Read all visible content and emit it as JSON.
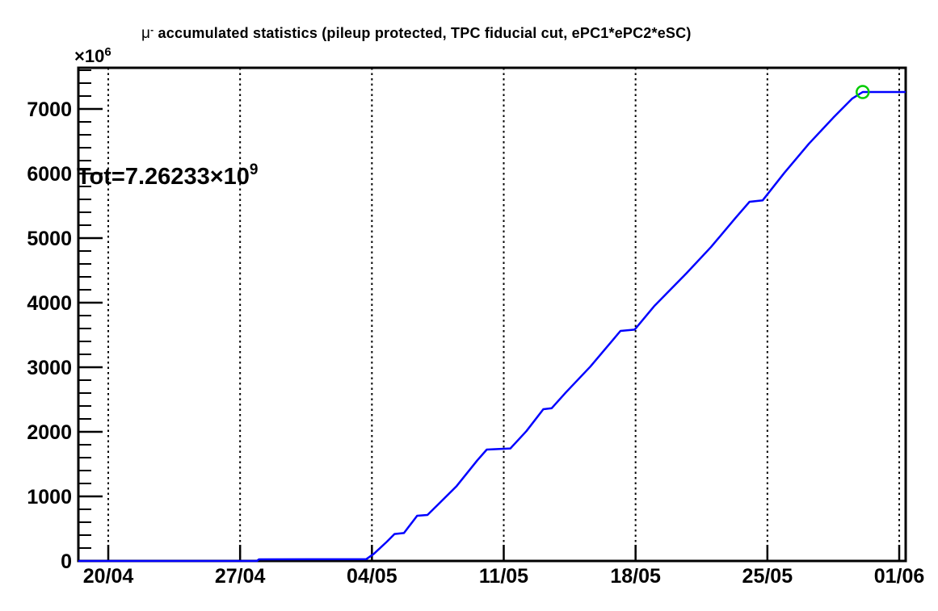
{
  "title": {
    "mu": "μ",
    "mu_sup": "-",
    "rest": " accumulated statistics (pileup protected, TPC fiducial cut, ePC1*ePC2*eSC)"
  },
  "annotation": {
    "prefix": "Tot=7.26233",
    "base": "×10",
    "exp": "9"
  },
  "y_scale": {
    "base": "×10",
    "exp": "6"
  },
  "chart_data": {
    "type": "line",
    "title": "μ⁻ accumulated statistics (pileup protected, TPC fiducial cut, ePC1*ePC2*eSC)",
    "total_label": "Tot=7.26233×10⁹",
    "total_value_e9": 7.26233,
    "x_axis": {
      "unit": "date (dd/mm)",
      "tick_days": [
        0,
        7,
        14,
        21,
        28,
        35,
        42
      ],
      "tick_labels": [
        "20/04",
        "27/04",
        "04/05",
        "11/05",
        "18/05",
        "25/05",
        "01/06"
      ],
      "range_days": [
        -1.59,
        42.34
      ],
      "grid": "vertical-dotted"
    },
    "y_axis": {
      "unit": "×10⁶",
      "tick_values": [
        0,
        1000,
        2000,
        3000,
        4000,
        5000,
        6000,
        7000
      ],
      "tick_labels": [
        "0",
        "1000",
        "2000",
        "3000",
        "4000",
        "5000",
        "6000",
        "7000"
      ],
      "minor_step": 200,
      "minor_max": 7600,
      "range": [
        0,
        7637
      ]
    },
    "series": [
      {
        "name": "accumulated-mu-minus-statistics",
        "color": "#0000ff",
        "line_width": 2.5,
        "points_day_value": [
          [
            -1.59,
            0
          ],
          [
            7.9,
            0
          ],
          [
            8.0,
            25
          ],
          [
            13.7,
            28
          ],
          [
            14.1,
            110
          ],
          [
            14.8,
            300
          ],
          [
            15.2,
            418
          ],
          [
            15.7,
            432
          ],
          [
            16.4,
            700
          ],
          [
            16.95,
            712
          ],
          [
            17.5,
            870
          ],
          [
            18.5,
            1160
          ],
          [
            19.6,
            1560
          ],
          [
            20.1,
            1725
          ],
          [
            21.35,
            1742
          ],
          [
            22.2,
            2010
          ],
          [
            23.1,
            2350
          ],
          [
            23.55,
            2366
          ],
          [
            24.3,
            2610
          ],
          [
            25.6,
            3010
          ],
          [
            27.2,
            3562
          ],
          [
            27.95,
            3582
          ],
          [
            29.0,
            3950
          ],
          [
            30.7,
            4455
          ],
          [
            32.0,
            4860
          ],
          [
            33.3,
            5310
          ],
          [
            34.05,
            5562
          ],
          [
            34.75,
            5585
          ],
          [
            35.9,
            6010
          ],
          [
            37.2,
            6460
          ],
          [
            38.5,
            6865
          ],
          [
            39.5,
            7160
          ],
          [
            40.06,
            7262
          ],
          [
            42.34,
            7262
          ]
        ]
      }
    ],
    "end_marker": {
      "day": 40.06,
      "value": 7262,
      "shape": "open-circle",
      "color": "#00cc00",
      "radius_px": 7.5
    },
    "colors": {
      "line": "#0000ff",
      "marker": "#00cc00",
      "frame": "#000000",
      "grid": "#000000",
      "background": "#ffffff"
    }
  }
}
